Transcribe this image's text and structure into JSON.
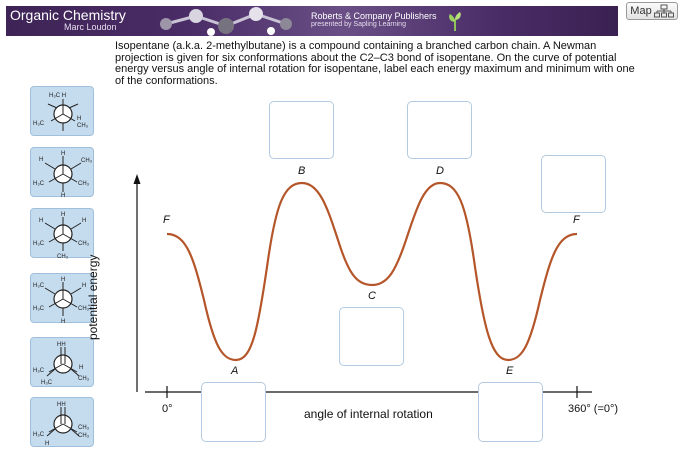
{
  "header": {
    "title": "Organic Chemistry",
    "author": "Marc Loudon",
    "publisher": "Roberts & Company Publishers",
    "presented_by": "presented by Sapling Learning"
  },
  "map_button": {
    "label": "Map"
  },
  "question": {
    "text": "Isopentane (a.k.a. 2-methylbutane) is a compound containing a branched carbon chain. A Newman projection is given for six conformations about the C2–C3 bond of isopentane. On the curve of potential energy versus angle of internal rotation for isopentane, label each energy maximum and minimum with one of the conformations."
  },
  "conformations": [
    {
      "id": "conf-1",
      "top_label": "H3C H",
      "left_label": "H3C",
      "right_label": "H",
      "right2": "CH3"
    },
    {
      "id": "conf-2",
      "top_label": "H",
      "left_label": "H3C",
      "right_label": "CH3",
      "right2": "CH3",
      "bottom": "H",
      "left2": "H"
    },
    {
      "id": "conf-3",
      "top_label": "H",
      "left_label": "H3C",
      "right_label": "H",
      "right2": "CH3",
      "bottom": "CH3",
      "left2": "H"
    },
    {
      "id": "conf-4",
      "top_label": "H",
      "left_label": "H3C",
      "right_label": "H",
      "right2": "CH3",
      "bottom": "H",
      "left2": "H3C"
    },
    {
      "id": "conf-5",
      "top_label": "HH",
      "left_label": "H3C",
      "right_label": "H",
      "right2": "CH3",
      "bottom": "H3C"
    },
    {
      "id": "conf-6",
      "top_label": "HH",
      "left_label": "H3C",
      "right_label": "CH3",
      "right2": "CH3",
      "bottom": "H"
    }
  ],
  "plot": {
    "ylabel": "potential energy",
    "xlabel": "angle of internal rotation",
    "x_start": "0°",
    "x_end": "360° (=0°)",
    "point_labels": {
      "A": "A",
      "B": "B",
      "C": "C",
      "D": "D",
      "E": "E",
      "F_left": "F",
      "F_right": "F"
    }
  },
  "chart_data": {
    "type": "line",
    "title": "",
    "xlabel": "angle of internal rotation",
    "ylabel": "potential energy",
    "x_ticks": [
      "0°",
      "360° (=0°)"
    ],
    "points": [
      {
        "label": "F",
        "kind": "maximum",
        "x": 0
      },
      {
        "label": "A",
        "kind": "minimum",
        "x": 60
      },
      {
        "label": "B",
        "kind": "maximum",
        "x": 120
      },
      {
        "label": "C",
        "kind": "minimum",
        "x": 180
      },
      {
        "label": "D",
        "kind": "maximum",
        "x": 240
      },
      {
        "label": "E",
        "kind": "minimum",
        "x": 300
      },
      {
        "label": "F",
        "kind": "maximum",
        "x": 360
      }
    ],
    "line_color": "#b5562a"
  },
  "colors": {
    "banner": "#4a2c66",
    "tile_bg": "#c5dcef",
    "curve": "#b5562a",
    "drop_border": "#b3cbe0"
  }
}
